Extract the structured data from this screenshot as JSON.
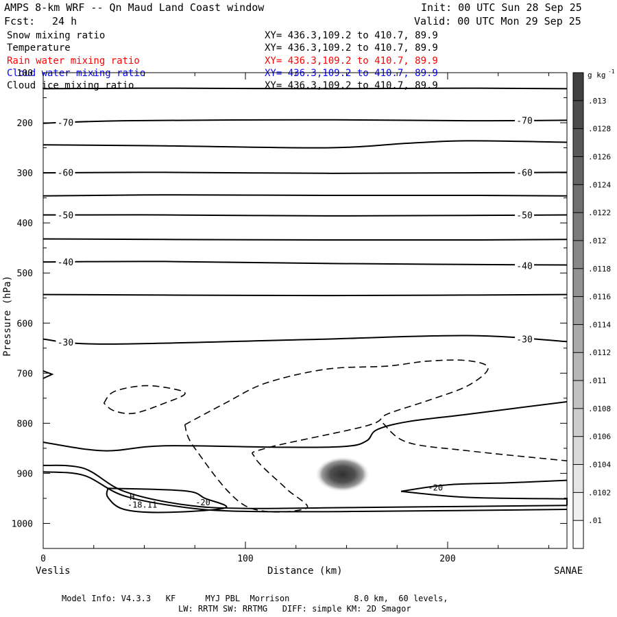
{
  "header": {
    "title": "AMPS 8-km WRF -- Qn Maud Land Coast window",
    "init": "Init: 00 UTC Sun 28 Sep 25",
    "fcst_label": "Fcst:",
    "fcst_value": "24 h",
    "valid": "Valid: 00 UTC Mon 29 Sep 25"
  },
  "fields": [
    {
      "name": "Snow mixing ratio",
      "xy": "XY= 436.3,109.2 to 410.7, 89.9",
      "color": "#000000"
    },
    {
      "name": "Temperature",
      "xy": "XY= 436.3,109.2 to 410.7, 89.9",
      "color": "#000000"
    },
    {
      "name": "Rain water mixing ratio",
      "xy": "XY= 436.3,109.2 to 410.7, 89.9",
      "color": "#ff0000"
    },
    {
      "name": "Cloud water mixing ratio",
      "xy": "XY= 436.3,109.2 to 410.7, 89.9",
      "color": "#0000ff"
    },
    {
      "name": "Cloud ice mixing ratio",
      "xy": "XY= 436.3,109.2 to 410.7, 89.9",
      "color": "#000000"
    }
  ],
  "footer": {
    "line1": "Model Info: V4.3.3   KF      MYJ PBL  Morrison             8.0 km,  60 levels,",
    "line2": "LW: RRTM SW: RRTMG   DIFF: simple KM: 2D Smagor"
  },
  "chart_data": {
    "type": "cross-section contour",
    "xlabel": "Distance (km)",
    "ylabel": "Pressure (hPa)",
    "xlim": [
      0,
      259
    ],
    "ylim": [
      1050,
      100
    ],
    "x_ticks": [
      0,
      100,
      200
    ],
    "y_ticks": [
      100,
      200,
      300,
      400,
      500,
      600,
      700,
      800,
      900,
      1000
    ],
    "left_endpoint": "Veslis",
    "right_endpoint": "SANAE",
    "colorbar": {
      "unit": "g kg",
      "unit_exp": "-1",
      "ticks": [
        ".01",
        ".0102",
        ".0104",
        ".0106",
        ".0108",
        ".011",
        ".0112",
        ".0114",
        ".0116",
        ".0118",
        ".012",
        ".0122",
        ".0124",
        ".0126",
        ".0128",
        ".013"
      ]
    },
    "temperature_contours": [
      {
        "label": "-70",
        "points": [
          [
            0,
            201
          ],
          [
            40,
            196
          ],
          [
            130,
            194
          ],
          [
            210,
            196
          ],
          [
            259,
            195
          ]
        ],
        "label_at": [
          [
            11,
            199
          ],
          [
            238,
            195
          ]
        ]
      },
      {
        "label": "-60",
        "points": [
          [
            0,
            300
          ],
          [
            60,
            299
          ],
          [
            140,
            301
          ],
          [
            210,
            300
          ],
          [
            259,
            299
          ]
        ],
        "label_at": [
          [
            11,
            299
          ],
          [
            238,
            299
          ]
        ]
      },
      {
        "label": "-50",
        "points": [
          [
            0,
            384
          ],
          [
            60,
            384
          ],
          [
            140,
            386
          ],
          [
            210,
            385
          ],
          [
            259,
            384
          ]
        ],
        "label_at": [
          [
            11,
            384
          ],
          [
            238,
            384
          ]
        ]
      },
      {
        "label": "-40",
        "points": [
          [
            0,
            478
          ],
          [
            60,
            477
          ],
          [
            140,
            481
          ],
          [
            210,
            483
          ],
          [
            259,
            484
          ]
        ],
        "label_at": [
          [
            11,
            478
          ],
          [
            238,
            485
          ]
        ]
      },
      {
        "label": "-30",
        "points": [
          [
            0,
            632
          ],
          [
            30,
            642
          ],
          [
            130,
            633
          ],
          [
            210,
            625
          ],
          [
            259,
            637
          ]
        ],
        "label_at": [
          [
            11,
            638
          ],
          [
            238,
            632
          ]
        ]
      }
    ],
    "unlabeled_contours": [
      {
        "points": [
          [
            0,
            132
          ],
          [
            60,
            131
          ],
          [
            140,
            132
          ],
          [
            210,
            131
          ],
          [
            259,
            132
          ]
        ]
      },
      {
        "points": [
          [
            0,
            244
          ],
          [
            60,
            246
          ],
          [
            140,
            250
          ],
          [
            180,
            241
          ],
          [
            210,
            236
          ],
          [
            259,
            239
          ]
        ]
      },
      {
        "points": [
          [
            0,
            346
          ],
          [
            60,
            344
          ],
          [
            140,
            345
          ],
          [
            210,
            345
          ],
          [
            259,
            346
          ]
        ]
      },
      {
        "points": [
          [
            0,
            432
          ],
          [
            60,
            433
          ],
          [
            140,
            434
          ],
          [
            210,
            434
          ],
          [
            259,
            433
          ]
        ]
      },
      {
        "points": [
          [
            0,
            543
          ],
          [
            60,
            544
          ],
          [
            140,
            545
          ],
          [
            210,
            544
          ],
          [
            259,
            543
          ]
        ]
      },
      {
        "points": [
          [
            0,
            838
          ],
          [
            30,
            855
          ],
          [
            60,
            845
          ],
          [
            120,
            848
          ],
          [
            150,
            846
          ],
          [
            160,
            835
          ],
          [
            165,
            813
          ],
          [
            180,
            797
          ],
          [
            210,
            782
          ],
          [
            259,
            757
          ]
        ]
      },
      {
        "points": [
          [
            0,
            897
          ],
          [
            20,
            904
          ],
          [
            40,
            945
          ],
          [
            70,
            968
          ],
          [
            100,
            976
          ],
          [
            160,
            976
          ],
          [
            259,
            972
          ]
        ]
      },
      {
        "points": [
          [
            0,
            884
          ],
          [
            20,
            890
          ],
          [
            40,
            936
          ],
          [
            70,
            963
          ],
          [
            100,
            970
          ],
          [
            160,
            968
          ],
          [
            259,
            964
          ]
        ]
      },
      {
        "points": [
          [
            32,
            930
          ],
          [
            70,
            935
          ],
          [
            80,
            950
          ],
          [
            90,
            969
          ],
          [
            60,
            978
          ],
          [
            40,
            972
          ],
          [
            32,
            948
          ],
          [
            32,
            930
          ]
        ]
      },
      {
        "points": [
          [
            177,
            936
          ],
          [
            200,
            923
          ],
          [
            230,
            919
          ],
          [
            259,
            914
          ]
        ]
      },
      {
        "points": [
          [
            177,
            936
          ],
          [
            210,
            948
          ],
          [
            259,
            951
          ]
        ]
      }
    ],
    "dashed_contours": [
      {
        "points": [
          [
            30,
            760
          ],
          [
            35,
            737
          ],
          [
            50,
            725
          ],
          [
            65,
            732
          ],
          [
            70,
            742
          ],
          [
            60,
            760
          ],
          [
            45,
            780
          ],
          [
            35,
            775
          ],
          [
            30,
            760
          ]
        ]
      },
      {
        "points": [
          [
            70,
            803
          ],
          [
            90,
            760
          ],
          [
            110,
            720
          ],
          [
            140,
            692
          ],
          [
            170,
            686
          ],
          [
            190,
            676
          ],
          [
            210,
            675
          ],
          [
            220,
            690
          ],
          [
            210,
            725
          ],
          [
            190,
            755
          ],
          [
            170,
            782
          ],
          [
            160,
            805
          ],
          [
            110,
            850
          ],
          [
            105,
            870
          ],
          [
            120,
            930
          ],
          [
            130,
            970
          ],
          [
            100,
            965
          ],
          [
            75,
            850
          ],
          [
            70,
            803
          ]
        ]
      },
      {
        "points": [
          [
            168,
            800
          ],
          [
            180,
            838
          ],
          [
            210,
            855
          ],
          [
            259,
            875
          ]
        ]
      }
    ],
    "inline_labels": [
      {
        "text": "-20",
        "x": 79,
        "y": 958
      },
      {
        "text": "-20",
        "x": 194,
        "y": 929
      },
      {
        "text": "H",
        "x": 44,
        "y": 947
      },
      {
        "text": "-18.11",
        "x": 49,
        "y": 963
      }
    ],
    "shaded_blob": {
      "x": 148,
      "y": 902,
      "value": ".0124"
    }
  }
}
